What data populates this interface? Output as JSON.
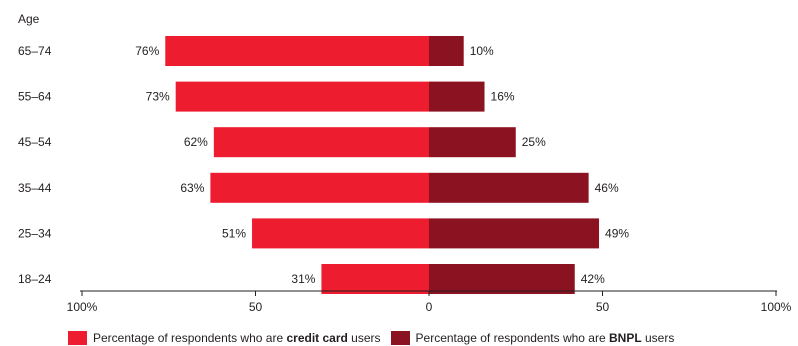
{
  "chart_data": {
    "type": "bar",
    "orientation": "horizontal-diverging",
    "y_axis_title": "Age",
    "categories": [
      "65–74",
      "55–64",
      "45–54",
      "35–44",
      "25–34",
      "18–24"
    ],
    "series": [
      {
        "name": "credit card users",
        "color": "#ed1c2e",
        "direction": "left",
        "values": [
          76,
          73,
          62,
          63,
          51,
          31
        ],
        "labels": [
          "76%",
          "73%",
          "62%",
          "63%",
          "51%",
          "31%"
        ]
      },
      {
        "name": "BNPL users",
        "color": "#8b1220",
        "direction": "right",
        "values": [
          10,
          16,
          25,
          46,
          49,
          42
        ],
        "labels": [
          "10%",
          "16%",
          "25%",
          "46%",
          "49%",
          "42%"
        ]
      }
    ],
    "x_ticks": [
      "100%",
      "50",
      "0",
      "50",
      "100%"
    ],
    "x_range": [
      -100,
      100
    ],
    "grid": false,
    "legend_position": "bottom"
  },
  "legend": {
    "items": [
      {
        "prefix": "Percentage of respondents who are ",
        "bold": "credit card",
        "suffix": " users",
        "color": "#ed1c2e"
      },
      {
        "prefix": "Percentage of respondents who are ",
        "bold": "BNPL",
        "suffix": " users",
        "color": "#8b1220"
      }
    ]
  }
}
